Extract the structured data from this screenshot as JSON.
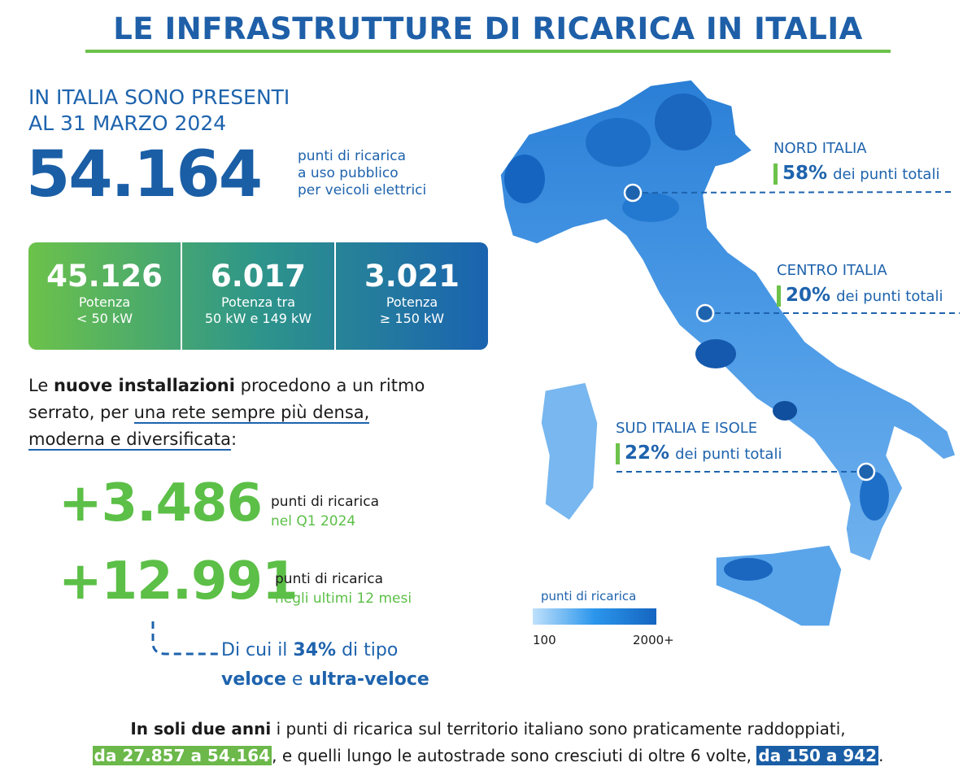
{
  "header": {
    "title": "LE INFRASTRUTTURE DI RICARICA IN ITALIA"
  },
  "intro": {
    "line1": "IN ITALIA SONO PRESENTI",
    "line2": "AL 31 MARZO 2024",
    "total": "54.164",
    "desc": [
      "punti di ricarica",
      "a uso pubblico",
      "per veicoli elettrici"
    ]
  },
  "power_boxes": [
    {
      "value": "45.126",
      "label": [
        "Potenza",
        "< 50 kW"
      ]
    },
    {
      "value": "6.017",
      "label": [
        "Potenza tra",
        "50 kW e 149 kW"
      ]
    },
    {
      "value": "3.021",
      "label": [
        "Potenza",
        "≥ 150 kW"
      ]
    }
  ],
  "growth": {
    "parts": [
      "Le ",
      "nuove installazioni",
      " procedono a un ritmo serrato, per ",
      "una rete sempre più densa, moderna e diversificata",
      ":"
    ]
  },
  "increments": [
    {
      "value": "+3.486",
      "label": "punti di ricarica",
      "period": "nel Q1 2024"
    },
    {
      "value": "+12.991",
      "label": "punti di ricarica",
      "period": "negli ultimi 12 mesi"
    }
  ],
  "fast_share": {
    "line1": [
      "Di cui il ",
      "34%",
      " di tipo"
    ],
    "line2": [
      "veloce",
      " e ",
      "ultra-veloce"
    ]
  },
  "regions": [
    {
      "name": "NORD ITALIA",
      "share": "58%",
      "suffix": "dei punti totali"
    },
    {
      "name": "CENTRO ITALIA",
      "share": "20%",
      "suffix": "dei punti totali"
    },
    {
      "name": "SUD ITALIA E ISOLE",
      "share": "22%",
      "suffix": "dei punti totali"
    }
  ],
  "legend": {
    "title": "punti di ricarica",
    "min": "100",
    "max": "2000+"
  },
  "footer": {
    "parts": [
      "In soli due anni",
      " i punti di ricarica sul territorio italiano sono praticamente raddoppiati, ",
      "da 27.857 a 54.164",
      ", e quelli lungo le autostrade sono cresciuti di oltre 6 volte, ",
      "da 150 a 942",
      "."
    ]
  }
}
